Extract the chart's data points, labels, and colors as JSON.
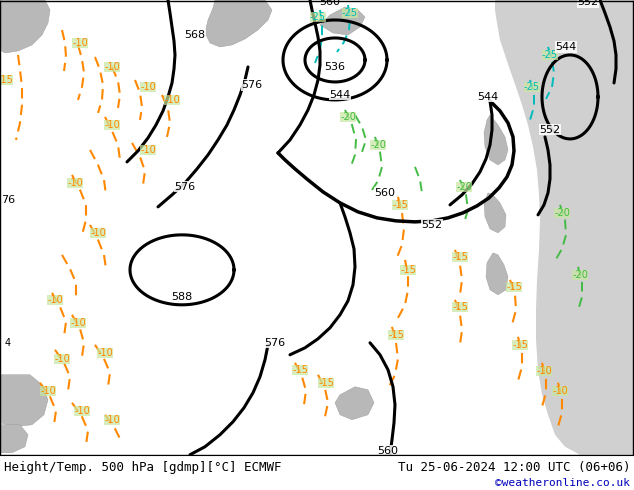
{
  "title_left": "Height/Temp. 500 hPa [gdmp][°C] ECMWF",
  "title_right": "Tu 25-06-2024 12:00 UTC (06+06)",
  "credit": "©weatheronline.co.uk",
  "fig_width": 6.34,
  "fig_height": 4.9,
  "dpi": 100,
  "land_color": "#c8e6a0",
  "sea_color": "#d0d0d0",
  "title_fontsize": 9,
  "credit_fontsize": 8,
  "credit_color": "#0000bb",
  "orange": "#FF8800",
  "green_temp": "#44bb44",
  "cyan_temp": "#00bbbb",
  "black_contour_lw": 2.2,
  "temp_contour_lw": 1.5
}
